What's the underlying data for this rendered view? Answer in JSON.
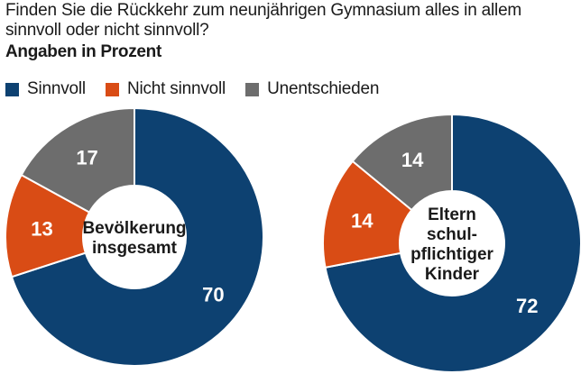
{
  "title": "Finden Sie die Rückkehr zum neunjährigen Gymnasium alles in allem sinnvoll oder nicht sinnvoll?",
  "subtitle": "Angaben in Prozent",
  "legend": [
    {
      "label": "Sinnvoll",
      "color": "#0d4171"
    },
    {
      "label": "Nicht sinnvoll",
      "color": "#d94c15"
    },
    {
      "label": "Unentschieden",
      "color": "#6d6d6d"
    }
  ],
  "chart_data": [
    {
      "type": "pie",
      "center_label": [
        "Bevölkerung",
        "insgesamt"
      ],
      "categories": [
        "Sinnvoll",
        "Nicht sinnvoll",
        "Unentschieden"
      ],
      "values": [
        70,
        13,
        17
      ],
      "colors": [
        "#0d4171",
        "#d94c15",
        "#6d6d6d"
      ]
    },
    {
      "type": "pie",
      "center_label": [
        "Eltern",
        "schul-",
        "pflichtiger",
        "Kinder"
      ],
      "categories": [
        "Sinnvoll",
        "Nicht sinnvoll",
        "Unentschieden"
      ],
      "values": [
        72,
        14,
        14
      ],
      "colors": [
        "#0d4171",
        "#d94c15",
        "#6d6d6d"
      ]
    }
  ]
}
